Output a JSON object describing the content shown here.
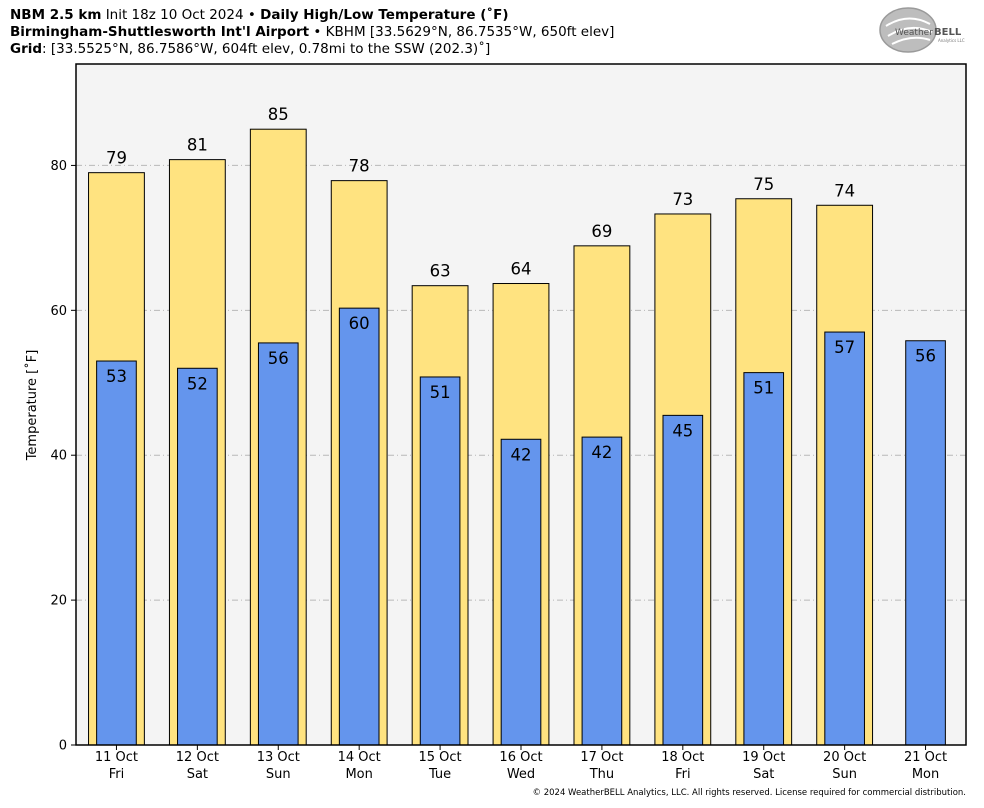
{
  "header": {
    "line1": {
      "model": "NBM 2.5 km",
      "init": "Init 18z 10 Oct 2024",
      "sep": "•",
      "product": "Daily High/Low Temperature (˚F)"
    },
    "line2": {
      "station": "Birmingham-Shuttlesworth Int'l Airport",
      "sep": "•",
      "detail": "KBHM [33.5629°N, 86.7535°W, 650ft elev]"
    },
    "line3": {
      "label": "Grid",
      "detail": ": [33.5525°N, 86.7586°W, 604ft elev, 0.78mi to the SSW (202.3)˚]"
    }
  },
  "logo": {
    "text_part1": "Weather",
    "text_part2": "BELL",
    "subtext": "Analytics LLC"
  },
  "copyright": "© 2024 WeatherBELL Analytics, LLC. All rights reserved. License required for commercial distribution.",
  "colors": {
    "high_bar": "#ffe380",
    "low_bar": "#6495ed",
    "plot_bg": "#f4f4f4",
    "grid": "#b8b8b8"
  },
  "chart_data": {
    "type": "bar",
    "ylabel": "Temperature [˚F]",
    "ylim": [
      0,
      94
    ],
    "yticks": [
      0,
      20,
      40,
      60,
      80
    ],
    "grid": true,
    "categories": [
      [
        "11 Oct",
        "Fri"
      ],
      [
        "12 Oct",
        "Sat"
      ],
      [
        "13 Oct",
        "Sun"
      ],
      [
        "14 Oct",
        "Mon"
      ],
      [
        "15 Oct",
        "Tue"
      ],
      [
        "16 Oct",
        "Wed"
      ],
      [
        "17 Oct",
        "Thu"
      ],
      [
        "18 Oct",
        "Fri"
      ],
      [
        "19 Oct",
        "Sat"
      ],
      [
        "20 Oct",
        "Sun"
      ],
      [
        "21 Oct",
        "Mon"
      ]
    ],
    "series": [
      {
        "key": "high",
        "values": [
          79,
          80.8,
          85,
          77.9,
          63.4,
          63.7,
          68.9,
          73.3,
          75.4,
          74.5,
          null
        ],
        "labels": [
          "79",
          "81",
          "85",
          "78",
          "63",
          "64",
          "69",
          "73",
          "75",
          "74",
          null
        ]
      },
      {
        "key": "low",
        "values": [
          53,
          52,
          55.5,
          60.3,
          50.8,
          42.2,
          42.5,
          45.5,
          51.4,
          57,
          55.8
        ],
        "labels": [
          "53",
          "52",
          "56",
          "60",
          "51",
          "42",
          "42",
          "45",
          "51",
          "57",
          "56"
        ]
      }
    ]
  }
}
